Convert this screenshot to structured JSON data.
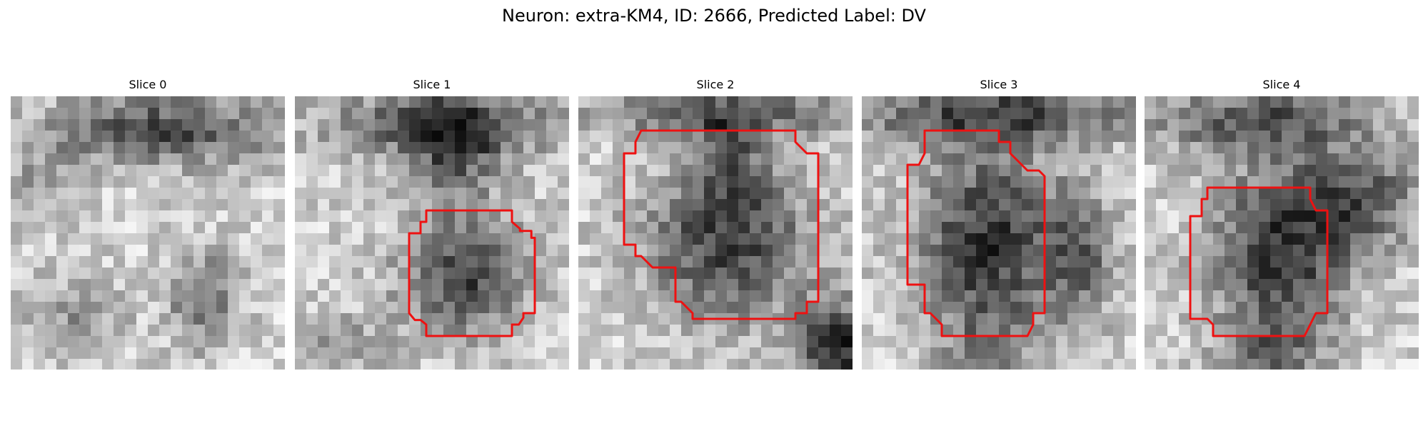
{
  "figure": {
    "title": "Neuron: extra-KM4, ID: 2666, Predicted Label: DV",
    "outline_color": "#ee1111",
    "colormap": "grayscale",
    "panels": [
      {
        "title": "Slice 0",
        "has_outline": false
      },
      {
        "title": "Slice 1",
        "has_outline": true
      },
      {
        "title": "Slice 2",
        "has_outline": true
      },
      {
        "title": "Slice 3",
        "has_outline": true
      },
      {
        "title": "Slice 4",
        "has_outline": true
      }
    ]
  }
}
